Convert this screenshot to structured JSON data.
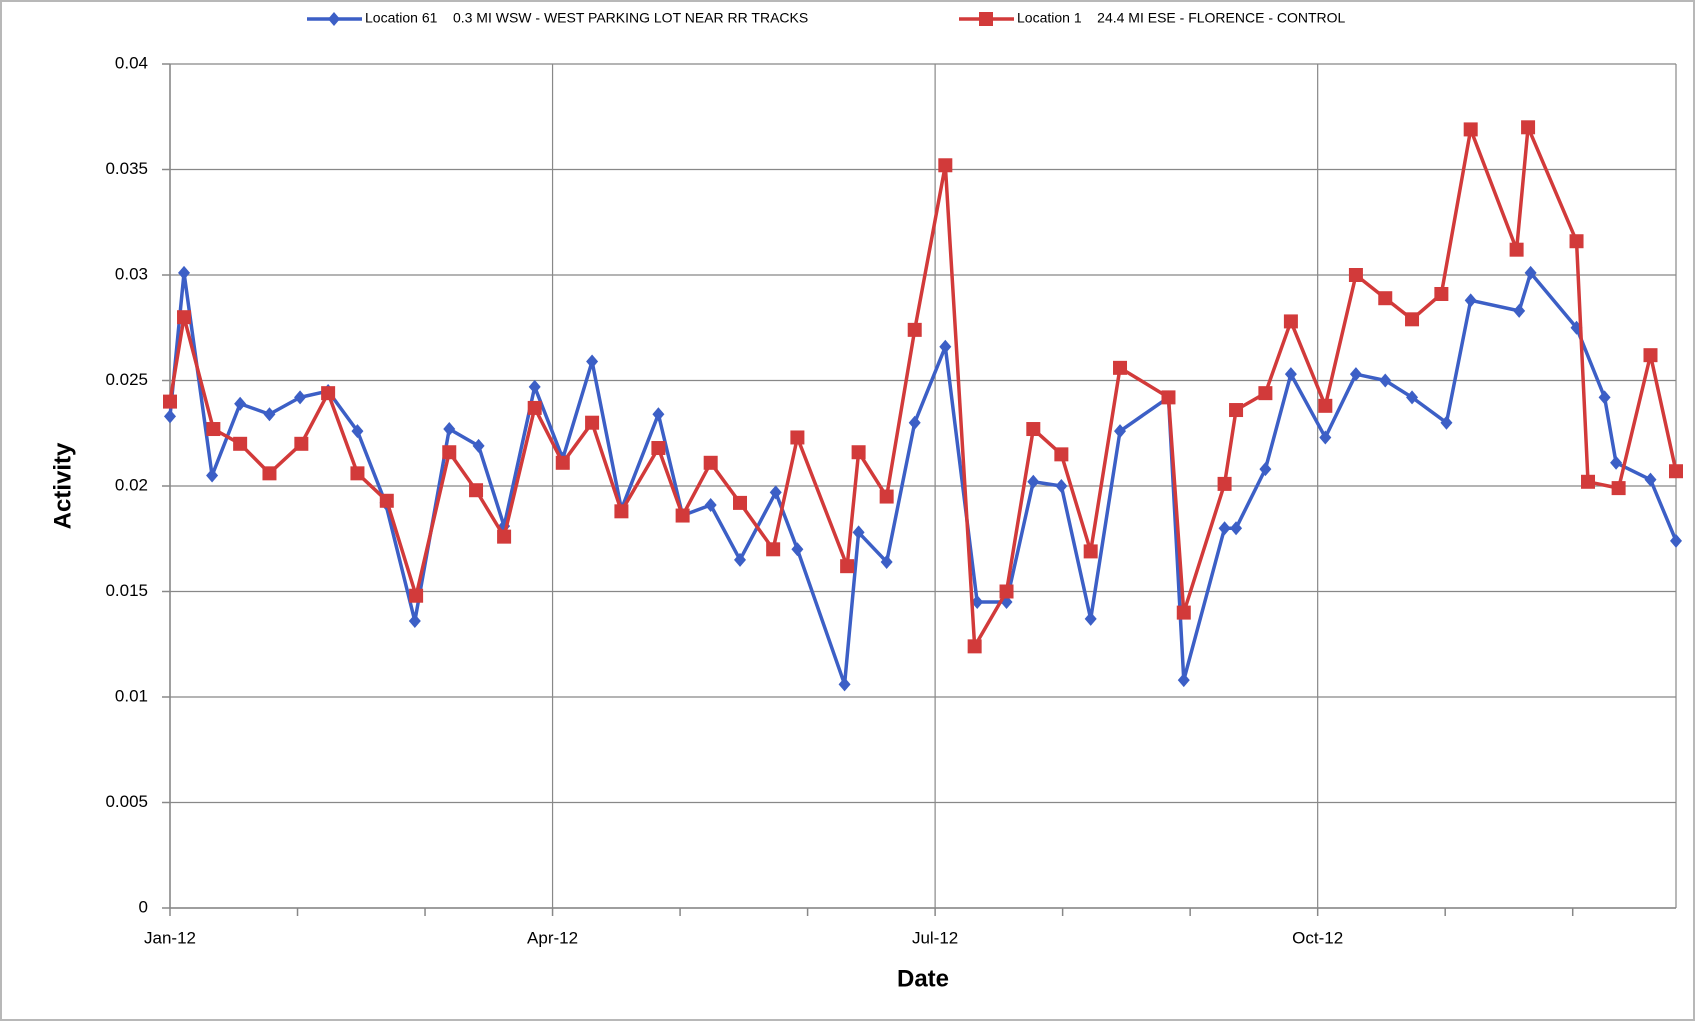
{
  "chart_data": {
    "type": "line",
    "y_label": "Activity",
    "x_label": "Date",
    "xlim": [
      0,
      11.81
    ],
    "xticks": [
      {
        "value": 0,
        "label": "Jan-12"
      },
      {
        "value": 3,
        "label": "Apr-12"
      },
      {
        "value": 6,
        "label": "Jul-12"
      },
      {
        "value": 9,
        "label": "Oct-12"
      }
    ],
    "x_minor_ticks": [
      1,
      2,
      4,
      5,
      7,
      8,
      10,
      11
    ],
    "ylim": [
      0,
      0.04
    ],
    "yticks": [
      0,
      0.005,
      0.01,
      0.015,
      0.02,
      0.025,
      0.03,
      0.035,
      0.04
    ],
    "grid": true,
    "legend": "top",
    "series": [
      {
        "name": "Location 61    0.3 MI WSW - WEST PARKING LOT NEAR RR TRACKS",
        "color": "#3c5fc6",
        "marker": "diamond",
        "x": [
          0,
          0.11,
          0.33,
          0.55,
          0.78,
          1.02,
          1.24,
          1.47,
          1.69,
          1.92,
          2.19,
          2.42,
          2.62,
          2.86,
          3.08,
          3.31,
          3.54,
          3.83,
          4.02,
          4.24,
          4.47,
          4.75,
          4.92,
          5.29,
          5.4,
          5.62,
          5.84,
          6.08,
          6.33,
          6.56,
          6.77,
          6.99,
          7.22,
          7.45,
          7.83,
          7.95,
          8.27,
          8.36,
          8.59,
          8.79,
          9.06,
          9.3,
          9.53,
          9.74,
          10.01,
          10.2,
          10.58,
          10.67,
          11.03,
          11.25,
          11.34,
          11.61,
          11.81
        ],
        "values": [
          0.0233,
          0.0301,
          0.0205,
          0.0239,
          0.0234,
          0.0242,
          0.0245,
          0.0226,
          0.0192,
          0.0136,
          0.0227,
          0.0219,
          0.0181,
          0.0247,
          0.0213,
          0.0259,
          0.0189,
          0.0234,
          0.0186,
          0.0191,
          0.0165,
          0.0197,
          0.017,
          0.0106,
          0.0178,
          0.0164,
          0.023,
          0.0266,
          0.0145,
          0.0145,
          0.0202,
          0.02,
          0.0137,
          0.0226,
          0.0242,
          0.0108,
          0.018,
          0.018,
          0.0208,
          0.0253,
          0.0223,
          0.0253,
          0.025,
          0.0242,
          0.023,
          0.0288,
          0.0283,
          0.0301,
          0.0275,
          0.0242,
          0.0211,
          0.0203,
          0.0174
        ]
      },
      {
        "name": "Location 1    24.4 MI ESE - FLORENCE - CONTROL",
        "color": "#d23a3a",
        "marker": "square",
        "x": [
          0,
          0.11,
          0.34,
          0.55,
          0.78,
          1.03,
          1.24,
          1.47,
          1.7,
          1.93,
          2.19,
          2.4,
          2.62,
          2.86,
          3.08,
          3.31,
          3.54,
          3.83,
          4.02,
          4.24,
          4.47,
          4.73,
          4.92,
          5.31,
          5.4,
          5.62,
          5.84,
          6.08,
          6.31,
          6.56,
          6.77,
          6.99,
          7.22,
          7.45,
          7.83,
          7.95,
          8.27,
          8.36,
          8.59,
          8.79,
          9.06,
          9.3,
          9.53,
          9.74,
          9.97,
          10.2,
          10.56,
          10.65,
          11.03,
          11.12,
          11.36,
          11.61,
          11.81
        ],
        "values": [
          0.024,
          0.028,
          0.0227,
          0.022,
          0.0206,
          0.022,
          0.0244,
          0.0206,
          0.0193,
          0.0148,
          0.0216,
          0.0198,
          0.0176,
          0.0237,
          0.0211,
          0.023,
          0.0188,
          0.0218,
          0.0186,
          0.0211,
          0.0192,
          0.017,
          0.0223,
          0.0162,
          0.0216,
          0.0195,
          0.0274,
          0.0352,
          0.0124,
          0.015,
          0.0227,
          0.0215,
          0.0169,
          0.0256,
          0.0242,
          0.014,
          0.0201,
          0.0236,
          0.0244,
          0.0278,
          0.0238,
          0.03,
          0.0289,
          0.0279,
          0.0291,
          0.0369,
          0.0312,
          0.037,
          0.0316,
          0.0202,
          0.0199,
          0.0262,
          0.0207
        ]
      }
    ]
  }
}
